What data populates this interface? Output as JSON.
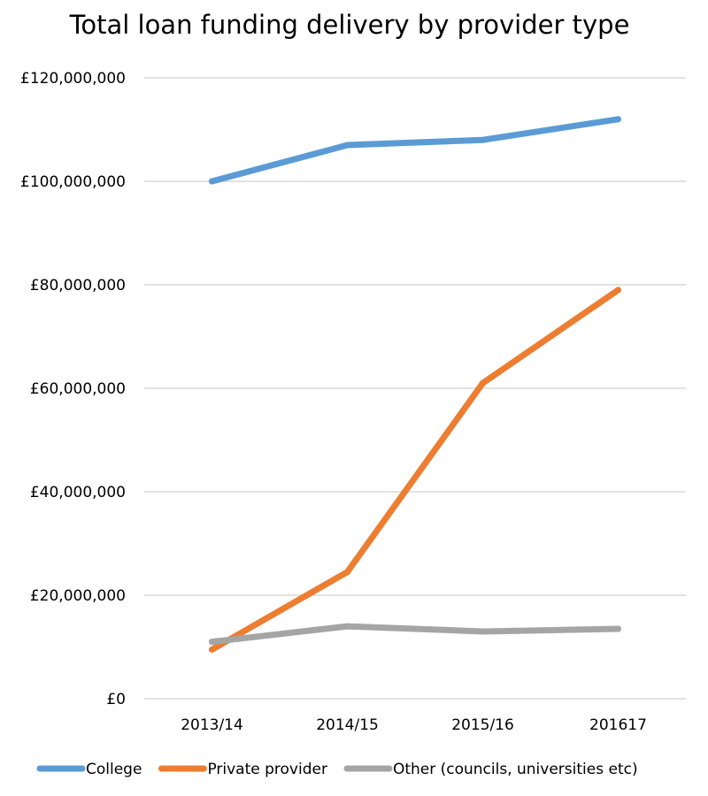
{
  "chart_data": {
    "type": "line",
    "title": "Total loan funding delivery by provider type",
    "categories": [
      "2013/14",
      "2014/15",
      "2015/16",
      "201617"
    ],
    "ylim": [
      0,
      120000000
    ],
    "yticks": [
      0,
      20000000,
      40000000,
      60000000,
      80000000,
      100000000,
      120000000
    ],
    "ytick_labels": [
      "£0",
      "£20,000,000",
      "£40,000,000",
      "£60,000,000",
      "£80,000,000",
      "£100,000,000",
      "£120,000,000"
    ],
    "grid": true,
    "legend_position": "bottom",
    "series": [
      {
        "name": "College",
        "color": "#5b9bd5",
        "values": [
          100000000,
          107000000,
          108000000,
          112000000
        ]
      },
      {
        "name": "Private provider",
        "color": "#ed7d31",
        "values": [
          9500000,
          24500000,
          61000000,
          79000000
        ]
      },
      {
        "name": "Other (councils, universities etc)",
        "color": "#a5a5a5",
        "values": [
          11000000,
          14000000,
          13000000,
          13500000
        ]
      }
    ]
  }
}
